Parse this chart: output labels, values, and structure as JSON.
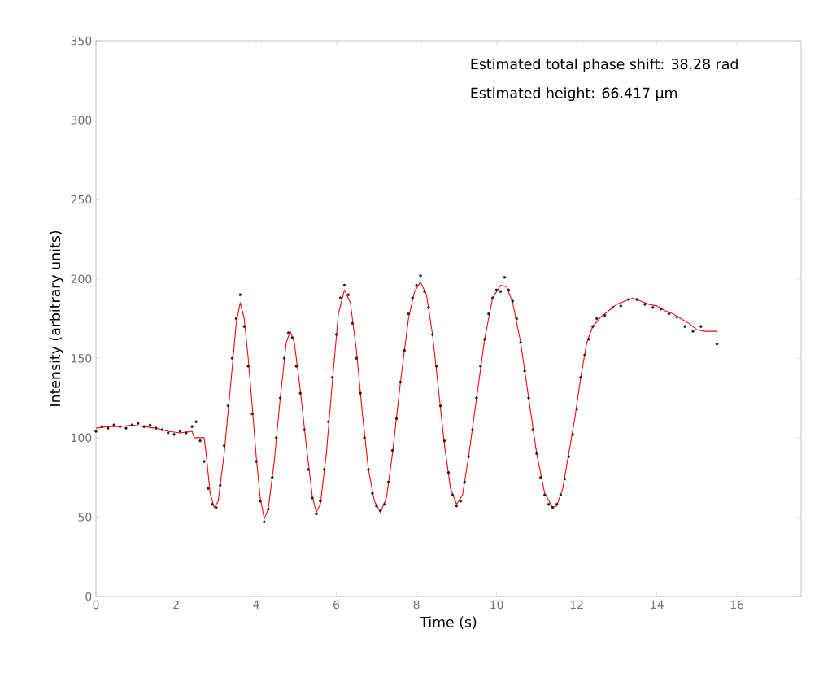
{
  "chart_data": {
    "type": "scatter",
    "xlabel": "Time (s)",
    "ylabel": "Intensity (arbitrary units)",
    "annotations": [
      "Estimated total phase shift: 38.28 rad",
      "Estimated height: 66.417 μm"
    ],
    "xlim": [
      0,
      17.6
    ],
    "ylim": [
      0,
      350
    ],
    "xticks": [
      0,
      2,
      4,
      6,
      8,
      10,
      12,
      14,
      16
    ],
    "yticks": [
      0,
      50,
      100,
      150,
      200,
      250,
      300,
      350
    ],
    "grid": false,
    "series": [
      {
        "color": "#202020",
        "marker": "circle",
        "x": [
          0,
          0.15,
          0.3,
          0.45,
          0.6,
          0.75,
          0.9,
          1.05,
          1.2,
          1.35,
          1.5,
          1.65,
          1.8,
          1.95,
          2.1,
          2.25,
          2.4,
          2.5,
          2.6,
          2.7,
          2.8,
          2.9,
          3.0,
          3.1,
          3.2,
          3.3,
          3.4,
          3.5,
          3.6,
          3.7,
          3.8,
          3.9,
          4.0,
          4.1,
          4.2,
          4.3,
          4.4,
          4.5,
          4.6,
          4.7,
          4.8,
          4.9,
          5.0,
          5.1,
          5.2,
          5.3,
          5.4,
          5.5,
          5.6,
          5.7,
          5.8,
          5.9,
          6.0,
          6.1,
          6.2,
          6.3,
          6.4,
          6.5,
          6.6,
          6.7,
          6.8,
          6.9,
          7.0,
          7.1,
          7.2,
          7.3,
          7.4,
          7.5,
          7.6,
          7.7,
          7.8,
          7.9,
          8.0,
          8.1,
          8.2,
          8.3,
          8.4,
          8.5,
          8.6,
          8.7,
          8.8,
          8.9,
          9.0,
          9.1,
          9.2,
          9.3,
          9.4,
          9.5,
          9.6,
          9.7,
          9.8,
          9.9,
          10.0,
          10.1,
          10.2,
          10.3,
          10.4,
          10.5,
          10.6,
          10.7,
          10.8,
          10.9,
          11.0,
          11.1,
          11.2,
          11.3,
          11.4,
          11.5,
          11.6,
          11.7,
          11.8,
          11.9,
          12.0,
          12.1,
          12.2,
          12.3,
          12.4,
          12.5,
          12.7,
          12.9,
          13.1,
          13.3,
          13.5,
          13.7,
          13.9,
          14.1,
          14.3,
          14.5,
          14.7,
          14.9,
          15.1,
          15.5
        ],
        "values": [
          104,
          107,
          106,
          108,
          107,
          106,
          108,
          109,
          107,
          108,
          106,
          105,
          103,
          102,
          104,
          103,
          107,
          110,
          98,
          85,
          68,
          58,
          56,
          70,
          95,
          120,
          150,
          175,
          190,
          170,
          145,
          115,
          85,
          60,
          47,
          55,
          75,
          100,
          125,
          150,
          166,
          163,
          145,
          128,
          105,
          80,
          62,
          52,
          60,
          80,
          110,
          138,
          165,
          188,
          196,
          190,
          172,
          150,
          128,
          100,
          80,
          65,
          57,
          54,
          58,
          72,
          92,
          112,
          135,
          155,
          178,
          188,
          196,
          202,
          192,
          182,
          165,
          145,
          120,
          98,
          78,
          64,
          57,
          60,
          72,
          88,
          105,
          125,
          145,
          162,
          178,
          188,
          193,
          192,
          201,
          193,
          186,
          175,
          160,
          142,
          125,
          105,
          90,
          75,
          64,
          58,
          56,
          58,
          64,
          74,
          88,
          102,
          118,
          138,
          152,
          162,
          170,
          175,
          177,
          182,
          183,
          187,
          187,
          184,
          182,
          181,
          178,
          176,
          170,
          167,
          170,
          159
        ]
      },
      {
        "type": "line",
        "color": "#ff0000",
        "marker": "none",
        "line_style": "solid",
        "x": [
          0,
          0.3,
          0.6,
          0.9,
          1.2,
          1.5,
          1.8,
          2.1,
          2.4,
          2.45,
          2.7,
          2.75,
          2.85,
          2.95,
          3.05,
          3.2,
          3.35,
          3.5,
          3.6,
          3.7,
          3.8,
          3.9,
          4.0,
          4.1,
          4.2,
          4.3,
          4.45,
          4.6,
          4.75,
          4.85,
          4.95,
          5.1,
          5.25,
          5.4,
          5.5,
          5.6,
          5.75,
          5.9,
          6.05,
          6.2,
          6.35,
          6.5,
          6.65,
          6.8,
          6.95,
          7.1,
          7.25,
          7.4,
          7.6,
          7.8,
          7.95,
          8.1,
          8.25,
          8.4,
          8.55,
          8.7,
          8.85,
          9.0,
          9.15,
          9.3,
          9.5,
          9.7,
          9.9,
          10.1,
          10.25,
          10.4,
          10.6,
          10.8,
          11.0,
          11.2,
          11.4,
          11.5,
          11.65,
          11.8,
          11.95,
          12.1,
          12.25,
          12.4,
          12.6,
          12.8,
          13.0,
          13.2,
          13.4,
          13.6,
          13.8,
          14.0,
          14.2,
          14.4,
          14.6,
          14.8,
          15.0,
          15.2,
          15.5,
          15.5
        ],
        "values": [
          106,
          107,
          107,
          108,
          107,
          106,
          104,
          103,
          104,
          100,
          100,
          90,
          65,
          56,
          60,
          90,
          130,
          172,
          185,
          175,
          150,
          120,
          88,
          62,
          49,
          55,
          85,
          125,
          160,
          167,
          160,
          130,
          95,
          63,
          53,
          58,
          90,
          135,
          178,
          193,
          185,
          155,
          115,
          80,
          60,
          53,
          62,
          90,
          135,
          175,
          192,
          198,
          190,
          165,
          130,
          95,
          68,
          58,
          64,
          88,
          125,
          162,
          188,
          196,
          195,
          185,
          160,
          125,
          90,
          65,
          56,
          57,
          68,
          90,
          112,
          138,
          160,
          170,
          176,
          180,
          184,
          186,
          188,
          186,
          184,
          183,
          180,
          178,
          175,
          172,
          168,
          167,
          167,
          161
        ]
      }
    ]
  }
}
